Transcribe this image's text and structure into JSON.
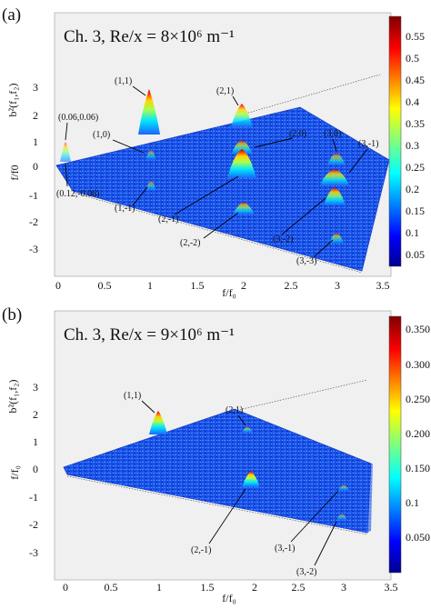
{
  "chart_data": [
    {
      "type": "heatmap",
      "panel_label": "(a)",
      "title": "Ch. 3, Re/x = 8×10⁶ m⁻¹",
      "zlabel": "b²(f₁,f₂)",
      "xlabel": "f/f₀",
      "ylabel": "f/f0",
      "xlim": [
        0,
        3.5
      ],
      "ylim": [
        -3,
        3.5
      ],
      "x_ticks": [
        "0",
        "0.5",
        "1",
        "1.5",
        "2",
        "2.5",
        "3",
        "3.5"
      ],
      "y_ticks": [
        "-3",
        "-2",
        "-1",
        "0",
        "1",
        "2",
        "3"
      ],
      "colorbar": {
        "min": 0.0,
        "max": 0.6,
        "ticks": [
          "0.55",
          "0.5",
          "0.45",
          "0.4",
          "0.35",
          "0.3",
          "0.25",
          "0.2",
          "0.15",
          "0.1",
          "0.05"
        ]
      },
      "peaks": [
        {
          "label": "(0.06,0.06)",
          "f1": 0.06,
          "f2": 0.06,
          "value": 0.18
        },
        {
          "label": "(0.12,-0.06)",
          "f1": 0.12,
          "f2": -0.06,
          "value": 0.12
        },
        {
          "label": "(1,1)",
          "f1": 1,
          "f2": 1,
          "value": 0.58
        },
        {
          "label": "(1,0)",
          "f1": 1,
          "f2": 0,
          "value": 0.14
        },
        {
          "label": "(1,-1)",
          "f1": 1,
          "f2": -1,
          "value": 0.12
        },
        {
          "label": "(2,1)",
          "f1": 2,
          "f2": 1,
          "value": 0.36
        },
        {
          "label": "(2,0)",
          "f1": 2,
          "f2": 0,
          "value": 0.3
        },
        {
          "label": "(2,-1)",
          "f1": 2,
          "f2": -1,
          "value": 0.52
        },
        {
          "label": "(2,-2)",
          "f1": 2,
          "f2": -2,
          "value": 0.2
        },
        {
          "label": "(3,0)",
          "f1": 3,
          "f2": 0,
          "value": 0.16
        },
        {
          "label": "(3,-1)",
          "f1": 3,
          "f2": -1,
          "value": 0.28
        },
        {
          "label": "(3,-2)",
          "f1": 3,
          "f2": -2,
          "value": 0.32
        },
        {
          "label": "(3,-3)",
          "f1": 3,
          "f2": -3,
          "value": 0.14
        }
      ]
    },
    {
      "type": "heatmap",
      "panel_label": "(b)",
      "title": "Ch. 3, Re/x = 9×10⁶ m⁻¹",
      "zlabel": "b²(f₁,f₂)",
      "xlabel": "f/f₀",
      "ylabel": "f/f₀",
      "xlim": [
        0,
        3.5
      ],
      "ylim": [
        -3,
        3.5
      ],
      "x_ticks": [
        "0",
        "0.5",
        "1",
        "1.5",
        "2",
        "2.5",
        "3",
        "3.5"
      ],
      "y_ticks": [
        "-3",
        "-2",
        "-1",
        "0",
        "1",
        "2",
        "3"
      ],
      "colorbar": {
        "min": 0.0,
        "max": 0.36,
        "ticks": [
          "0.350",
          "0.300",
          "0.250",
          "0.200",
          "0.150",
          "0.1",
          "0.050"
        ]
      },
      "peaks": [
        {
          "label": "(1,1)",
          "f1": 1,
          "f2": 1,
          "value": 0.35
        },
        {
          "label": "(2,1)",
          "f1": 2,
          "f2": 1,
          "value": 0.12
        },
        {
          "label": "(2,-1)",
          "f1": 2,
          "f2": -1,
          "value": 0.3
        },
        {
          "label": "(3,-1)",
          "f1": 3,
          "f2": -1,
          "value": 0.1
        },
        {
          "label": "(3,-2)",
          "f1": 3,
          "f2": -2,
          "value": 0.08
        }
      ]
    }
  ]
}
